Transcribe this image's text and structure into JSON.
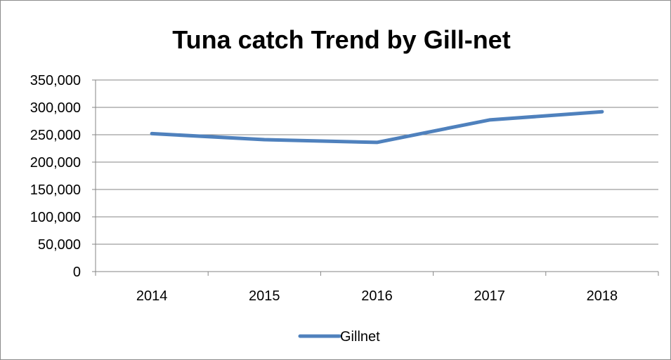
{
  "chart_data": {
    "type": "line",
    "title": "Tuna catch Trend  by Gill-net",
    "xlabel": "",
    "ylabel": "",
    "categories": [
      "2014",
      "2015",
      "2016",
      "2017",
      "2018"
    ],
    "ylim": [
      0,
      350000
    ],
    "ytick_values": [
      0,
      50000,
      100000,
      150000,
      200000,
      250000,
      300000,
      350000
    ],
    "ytick_labels": [
      "0",
      "50,000",
      "100,000",
      "150,000",
      "200,000",
      "250,000",
      "300,000",
      "350,000"
    ],
    "series": [
      {
        "name": "Gillnet",
        "color": "#4f81bd",
        "values": [
          252000,
          241000,
          236000,
          277000,
          292000
        ]
      }
    ],
    "grid": "horizontal",
    "legend_position": "bottom"
  }
}
